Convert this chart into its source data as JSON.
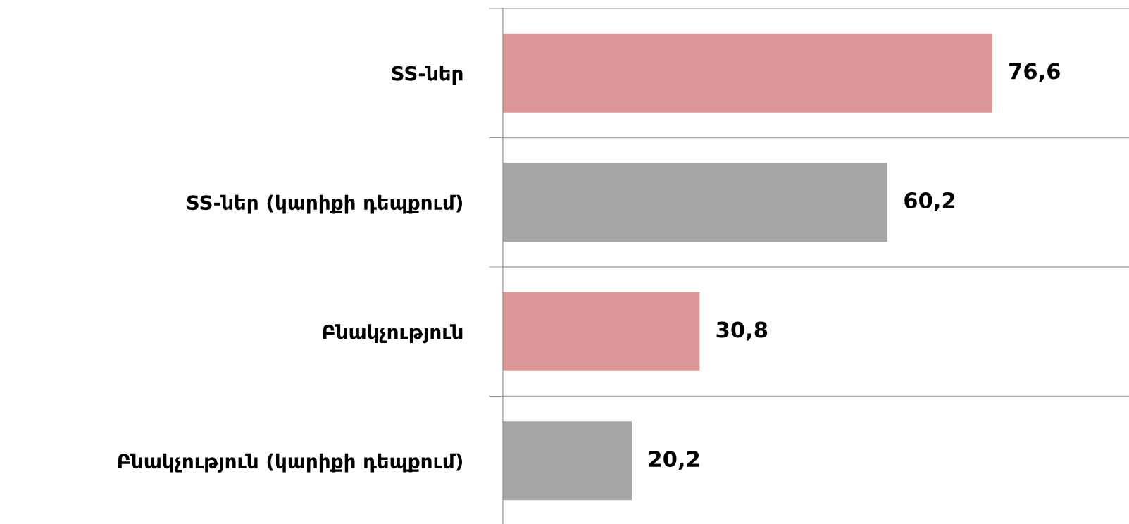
{
  "chart_data": {
    "type": "bar",
    "orientation": "horizontal",
    "categories": [
      "SS-ներ",
      "SS-ներ (կարիքի դեպքում)",
      "Բնակչություն",
      "Բնակչություն (կարիքի դեպքում)"
    ],
    "values": [
      76.6,
      60.2,
      30.8,
      20.2
    ],
    "colors": [
      "#d99694",
      "#a6a6a6",
      "#d99694",
      "#a6a6a6"
    ],
    "value_labels": [
      "76,6",
      "60,2",
      "30,8",
      "20,2"
    ],
    "xlim": [
      0,
      98
    ],
    "grid": "y",
    "tick_labels": "y"
  }
}
